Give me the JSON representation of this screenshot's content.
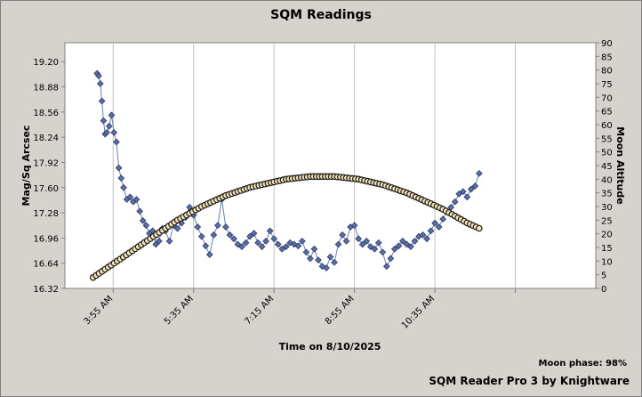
{
  "chart_data": {
    "type": "scatter",
    "title": "SQM Readings",
    "xlabel": "Time on 8/10/2025",
    "ylabel": "Mag/Sq Arcsec",
    "y2label": "Moon Altitude",
    "x_ticks": [
      "3:55 AM",
      "5:35 AM",
      "7:15 AM",
      "8:55 AM",
      "10:35 AM"
    ],
    "xlim": [
      "2:55 AM",
      "1:55 PM"
    ],
    "ylim": [
      16.32,
      19.44
    ],
    "yticks": [
      16.32,
      16.64,
      16.96,
      17.28,
      17.6,
      17.92,
      18.24,
      18.56,
      18.88,
      19.2
    ],
    "y2lim": [
      0,
      90
    ],
    "y2ticks": [
      0,
      5,
      10,
      15,
      20,
      25,
      30,
      35,
      40,
      45,
      50,
      55,
      60,
      65,
      70,
      75,
      80,
      85,
      90
    ],
    "grid": true,
    "series": [
      {
        "axis": "left",
        "color": "#5a6fa8",
        "points": [
          [
            "3:35",
            19.05
          ],
          [
            "3:37",
            19.02
          ],
          [
            "3:39",
            18.92
          ],
          [
            "3:41",
            18.7
          ],
          [
            "3:43",
            18.45
          ],
          [
            "3:45",
            18.28
          ],
          [
            "3:47",
            18.3
          ],
          [
            "3:50",
            18.38
          ],
          [
            "3:53",
            18.52
          ],
          [
            "3:56",
            18.3
          ],
          [
            "3:59",
            18.18
          ],
          [
            "4:02",
            17.85
          ],
          [
            "4:05",
            17.72
          ],
          [
            "4:08",
            17.6
          ],
          [
            "4:12",
            17.45
          ],
          [
            "4:16",
            17.48
          ],
          [
            "4:20",
            17.42
          ],
          [
            "4:24",
            17.45
          ],
          [
            "4:28",
            17.3
          ],
          [
            "4:32",
            17.18
          ],
          [
            "4:36",
            17.12
          ],
          [
            "4:40",
            17.02
          ],
          [
            "4:44",
            17.05
          ],
          [
            "4:48",
            16.88
          ],
          [
            "4:52",
            16.92
          ],
          [
            "4:56",
            17.08
          ],
          [
            "5:00",
            17.05
          ],
          [
            "5:05",
            16.92
          ],
          [
            "5:10",
            17.12
          ],
          [
            "5:15",
            17.08
          ],
          [
            "5:20",
            17.15
          ],
          [
            "5:25",
            17.22
          ],
          [
            "5:30",
            17.35
          ],
          [
            "5:35",
            17.25
          ],
          [
            "5:40",
            17.1
          ],
          [
            "5:45",
            16.98
          ],
          [
            "5:50",
            16.86
          ],
          [
            "5:55",
            16.75
          ],
          [
            "6:00",
            17.0
          ],
          [
            "6:05",
            17.12
          ],
          [
            "6:10",
            17.45
          ],
          [
            "6:15",
            17.1
          ],
          [
            "6:20",
            17.0
          ],
          [
            "6:25",
            16.95
          ],
          [
            "6:30",
            16.88
          ],
          [
            "6:35",
            16.85
          ],
          [
            "6:40",
            16.9
          ],
          [
            "6:45",
            16.98
          ],
          [
            "6:50",
            17.02
          ],
          [
            "6:55",
            16.9
          ],
          [
            "7:00",
            16.85
          ],
          [
            "7:05",
            16.92
          ],
          [
            "7:10",
            17.05
          ],
          [
            "7:15",
            16.95
          ],
          [
            "7:20",
            16.88
          ],
          [
            "7:25",
            16.82
          ],
          [
            "7:30",
            16.85
          ],
          [
            "7:35",
            16.9
          ],
          [
            "7:40",
            16.88
          ],
          [
            "7:45",
            16.86
          ],
          [
            "7:50",
            16.92
          ],
          [
            "7:55",
            16.78
          ],
          [
            "8:00",
            16.7
          ],
          [
            "8:05",
            16.82
          ],
          [
            "8:10",
            16.68
          ],
          [
            "8:15",
            16.6
          ],
          [
            "8:20",
            16.58
          ],
          [
            "8:25",
            16.72
          ],
          [
            "8:30",
            16.65
          ],
          [
            "8:35",
            16.88
          ],
          [
            "8:40",
            17.0
          ],
          [
            "8:45",
            16.92
          ],
          [
            "8:50",
            17.1
          ],
          [
            "8:55",
            17.12
          ],
          [
            "9:00",
            16.95
          ],
          [
            "9:05",
            16.88
          ],
          [
            "9:10",
            16.92
          ],
          [
            "9:15",
            16.85
          ],
          [
            "9:20",
            16.82
          ],
          [
            "9:25",
            16.9
          ],
          [
            "9:30",
            16.78
          ],
          [
            "9:35",
            16.6
          ],
          [
            "9:40",
            16.7
          ],
          [
            "9:45",
            16.82
          ],
          [
            "9:50",
            16.86
          ],
          [
            "9:55",
            16.92
          ],
          [
            "10:00",
            16.88
          ],
          [
            "10:05",
            16.85
          ],
          [
            "10:10",
            16.92
          ],
          [
            "10:15",
            16.98
          ],
          [
            "10:20",
            17.0
          ],
          [
            "10:25",
            16.95
          ],
          [
            "10:30",
            17.05
          ],
          [
            "10:35",
            17.15
          ],
          [
            "10:40",
            17.1
          ],
          [
            "10:45",
            17.2
          ],
          [
            "10:50",
            17.3
          ],
          [
            "10:55",
            17.35
          ],
          [
            "11:00",
            17.42
          ],
          [
            "11:05",
            17.52
          ],
          [
            "11:10",
            17.55
          ],
          [
            "11:15",
            17.48
          ],
          [
            "11:20",
            17.58
          ],
          [
            "11:25",
            17.62
          ],
          [
            "11:30",
            17.78
          ]
        ]
      },
      {
        "axis": "right",
        "color": "#f5e6b8",
        "points": [
          [
            "3:30",
            4
          ],
          [
            "3:45",
            7
          ],
          [
            "4:00",
            10
          ],
          [
            "4:15",
            13
          ],
          [
            "4:30",
            16
          ],
          [
            "4:45",
            19
          ],
          [
            "5:00",
            22
          ],
          [
            "5:15",
            25
          ],
          [
            "5:30",
            27.5
          ],
          [
            "5:45",
            30
          ],
          [
            "6:00",
            32
          ],
          [
            "6:15",
            34
          ],
          [
            "6:30",
            35.5
          ],
          [
            "6:45",
            37
          ],
          [
            "7:00",
            38
          ],
          [
            "7:15",
            39
          ],
          [
            "7:30",
            40
          ],
          [
            "7:45",
            40.5
          ],
          [
            "8:00",
            41
          ],
          [
            "8:15",
            41
          ],
          [
            "8:30",
            41
          ],
          [
            "8:45",
            40.5
          ],
          [
            "9:00",
            40
          ],
          [
            "9:15",
            39
          ],
          [
            "9:30",
            38
          ],
          [
            "9:45",
            36.5
          ],
          [
            "10:00",
            35
          ],
          [
            "10:15",
            33
          ],
          [
            "10:30",
            31
          ],
          [
            "10:45",
            29
          ],
          [
            "11:00",
            26.5
          ],
          [
            "11:15",
            24
          ],
          [
            "11:30",
            22
          ]
        ]
      }
    ]
  },
  "footer": {
    "moon_phase": "Moon phase: 98%",
    "brand": "SQM Reader Pro 3 by Knightware"
  }
}
